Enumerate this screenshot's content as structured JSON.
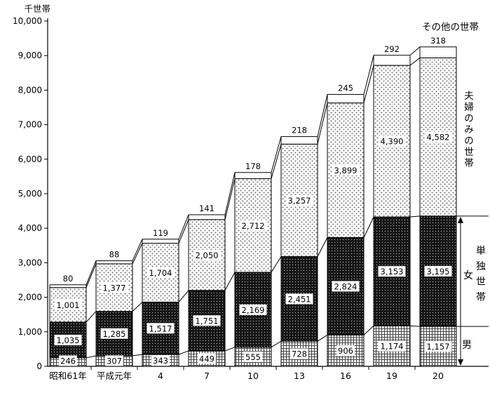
{
  "chart_data": {
    "type": "bar",
    "stacked": true,
    "title": "",
    "ylabel": "千世帯",
    "xlabel": "",
    "ylim": [
      0,
      10000
    ],
    "ytick_interval": 1000,
    "grid": false,
    "legend_position": "right-annotations",
    "categories": [
      "昭和61年",
      "平成元年",
      "4",
      "7",
      "10",
      "13",
      "16",
      "19",
      "20"
    ],
    "series": [
      {
        "key": "male-single",
        "name": "男",
        "pattern": "checker",
        "values": [
          246,
          307,
          343,
          449,
          555,
          728,
          906,
          1174,
          1157
        ]
      },
      {
        "key": "female-single",
        "name": "女",
        "pattern": "darkdots",
        "values": [
          1035,
          1285,
          1517,
          1751,
          2169,
          2451,
          2824,
          3153,
          3195
        ]
      },
      {
        "key": "couple-only",
        "name": "夫婦のみの世帯",
        "pattern": "dots",
        "values": [
          1001,
          1377,
          1704,
          2050,
          2712,
          3257,
          3899,
          4390,
          4582
        ]
      },
      {
        "key": "other-households",
        "name": "その他の世帯",
        "pattern": "white",
        "values": [
          80,
          88,
          119,
          141,
          178,
          218,
          245,
          292,
          318
        ]
      }
    ],
    "annotations": {
      "top_right": "その他の世帯",
      "couple_vertical": "夫婦のみの世帯",
      "single_vertical": "単独世帯",
      "female": "女",
      "male": "男"
    },
    "colors": {
      "axis": "#000000",
      "bar_outline": "#000000",
      "label_box": "#ffffff",
      "dark_fill": "#161616",
      "dot_fill": "#6e6e6e"
    }
  }
}
